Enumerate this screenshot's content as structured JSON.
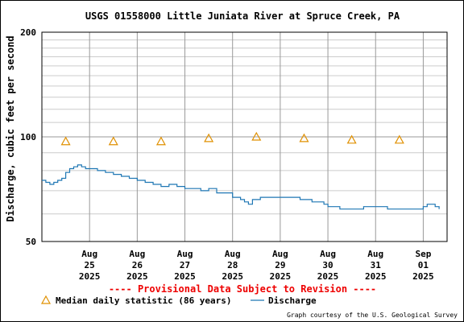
{
  "chart_data": {
    "type": "line",
    "title": "USGS 01558000 Little Juniata River at Spruce Creek, PA",
    "ylabel": "Discharge, cubic feet per second",
    "xlabel": "",
    "y_scale": "log",
    "ylim": [
      50,
      200
    ],
    "y_ticks": [
      {
        "value": 50,
        "label": "50"
      },
      {
        "value": 100,
        "label": "100"
      },
      {
        "value": 200,
        "label": "200"
      }
    ],
    "x_range": [
      "2025-08-24T00:00",
      "2025-09-01T12:00"
    ],
    "x_ticks": [
      {
        "date": "2025-08-25",
        "lines": [
          "Aug",
          "25",
          "2025"
        ]
      },
      {
        "date": "2025-08-26",
        "lines": [
          "Aug",
          "26",
          "2025"
        ]
      },
      {
        "date": "2025-08-27",
        "lines": [
          "Aug",
          "27",
          "2025"
        ]
      },
      {
        "date": "2025-08-28",
        "lines": [
          "Aug",
          "28",
          "2025"
        ]
      },
      {
        "date": "2025-08-29",
        "lines": [
          "Aug",
          "29",
          "2025"
        ]
      },
      {
        "date": "2025-08-30",
        "lines": [
          "Aug",
          "30",
          "2025"
        ]
      },
      {
        "date": "2025-08-31",
        "lines": [
          "Aug",
          "31",
          "2025"
        ]
      },
      {
        "date": "2025-09-01",
        "lines": [
          "Sep",
          "01",
          "2025"
        ]
      }
    ],
    "grid": true,
    "legend_position": "bottom",
    "series": [
      {
        "name": "Discharge",
        "color": "#1f77b4",
        "style": "line",
        "points": [
          [
            "2025-08-24T00:00",
            75
          ],
          [
            "2025-08-24T02:00",
            74
          ],
          [
            "2025-08-24T04:00",
            73
          ],
          [
            "2025-08-24T06:00",
            74
          ],
          [
            "2025-08-24T08:00",
            75
          ],
          [
            "2025-08-24T10:00",
            76
          ],
          [
            "2025-08-24T12:00",
            79
          ],
          [
            "2025-08-24T14:00",
            81
          ],
          [
            "2025-08-24T16:00",
            82
          ],
          [
            "2025-08-24T18:00",
            83
          ],
          [
            "2025-08-24T20:00",
            82
          ],
          [
            "2025-08-24T22:00",
            81
          ],
          [
            "2025-08-25T00:00",
            81
          ],
          [
            "2025-08-25T04:00",
            80
          ],
          [
            "2025-08-25T08:00",
            79
          ],
          [
            "2025-08-25T12:00",
            78
          ],
          [
            "2025-08-25T16:00",
            77
          ],
          [
            "2025-08-25T20:00",
            76
          ],
          [
            "2025-08-26T00:00",
            75
          ],
          [
            "2025-08-26T04:00",
            74
          ],
          [
            "2025-08-26T08:00",
            73
          ],
          [
            "2025-08-26T12:00",
            72
          ],
          [
            "2025-08-26T16:00",
            73
          ],
          [
            "2025-08-26T20:00",
            72
          ],
          [
            "2025-08-27T00:00",
            71
          ],
          [
            "2025-08-27T04:00",
            71
          ],
          [
            "2025-08-27T08:00",
            70
          ],
          [
            "2025-08-27T12:00",
            71
          ],
          [
            "2025-08-27T16:00",
            69
          ],
          [
            "2025-08-27T20:00",
            69
          ],
          [
            "2025-08-28T00:00",
            67
          ],
          [
            "2025-08-28T04:00",
            66
          ],
          [
            "2025-08-28T06:00",
            65
          ],
          [
            "2025-08-28T08:00",
            64
          ],
          [
            "2025-08-28T10:00",
            66
          ],
          [
            "2025-08-28T14:00",
            67
          ],
          [
            "2025-08-28T20:00",
            67
          ],
          [
            "2025-08-29T00:00",
            67
          ],
          [
            "2025-08-29T06:00",
            67
          ],
          [
            "2025-08-29T10:00",
            66
          ],
          [
            "2025-08-29T16:00",
            65
          ],
          [
            "2025-08-29T22:00",
            64
          ],
          [
            "2025-08-30T00:00",
            63
          ],
          [
            "2025-08-30T06:00",
            62
          ],
          [
            "2025-08-30T12:00",
            62
          ],
          [
            "2025-08-30T18:00",
            63
          ],
          [
            "2025-08-31T00:00",
            63
          ],
          [
            "2025-08-31T06:00",
            62
          ],
          [
            "2025-08-31T12:00",
            62
          ],
          [
            "2025-08-31T18:00",
            62
          ],
          [
            "2025-09-01T00:00",
            63
          ],
          [
            "2025-09-01T02:00",
            64
          ],
          [
            "2025-09-01T04:00",
            64
          ],
          [
            "2025-09-01T06:00",
            63
          ],
          [
            "2025-09-01T08:00",
            62
          ]
        ]
      },
      {
        "name": "Median daily statistic (86 years)",
        "color": "#e09000",
        "style": "marker",
        "points": [
          [
            "2025-08-24T12:00",
            97
          ],
          [
            "2025-08-25T12:00",
            97
          ],
          [
            "2025-08-26T12:00",
            97
          ],
          [
            "2025-08-27T12:00",
            99
          ],
          [
            "2025-08-28T12:00",
            100
          ],
          [
            "2025-08-29T12:00",
            99
          ],
          [
            "2025-08-30T12:00",
            98
          ],
          [
            "2025-08-31T12:00",
            98
          ]
        ]
      }
    ]
  },
  "provisional_text": "---- Provisional Data Subject to Revision ----",
  "legend": {
    "median_label": "Median daily statistic (86 years)",
    "discharge_label": "Discharge"
  },
  "credit": "Graph courtesy of the U.S. Geological Survey"
}
